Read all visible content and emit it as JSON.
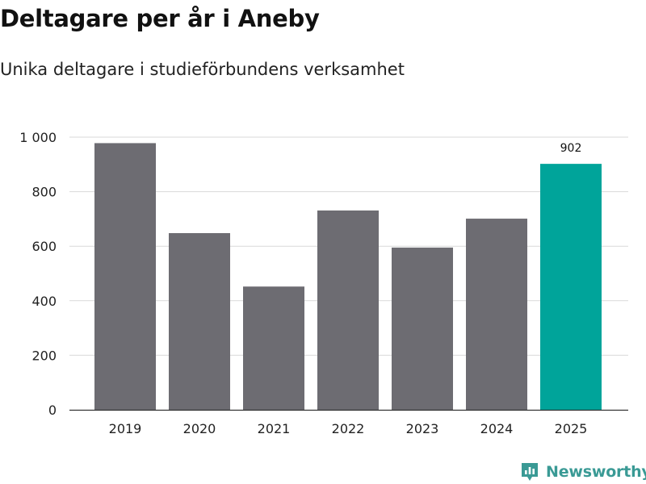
{
  "chart_data": {
    "type": "bar",
    "title": "Deltagare per år i Aneby",
    "subtitle": "Unika deltagare i studieförbundens verksamhet",
    "xlabel": "",
    "ylabel": "",
    "ylim": [
      0,
      1000
    ],
    "yticks": [
      0,
      200,
      400,
      600,
      800,
      1000
    ],
    "ytick_labels": [
      "0",
      "200",
      "400",
      "600",
      "800",
      "1 000"
    ],
    "grid": true,
    "categories": [
      "2019",
      "2020",
      "2021",
      "2022",
      "2023",
      "2024",
      "2025"
    ],
    "values": [
      978,
      648,
      452,
      731,
      595,
      701,
      902
    ],
    "data_labels": [
      "",
      "",
      "",
      "",
      "",
      "",
      "902"
    ],
    "colors": {
      "default": "#6d6c72",
      "highlight": "#00a49a",
      "grid": "#d9d9d9",
      "axis": "#333333",
      "tick_text": "#222222"
    },
    "highlight_index": 6
  },
  "branding": {
    "name": "Newsworthy",
    "icon": "newsworthy-logo-icon",
    "color": "#3a9a95"
  }
}
